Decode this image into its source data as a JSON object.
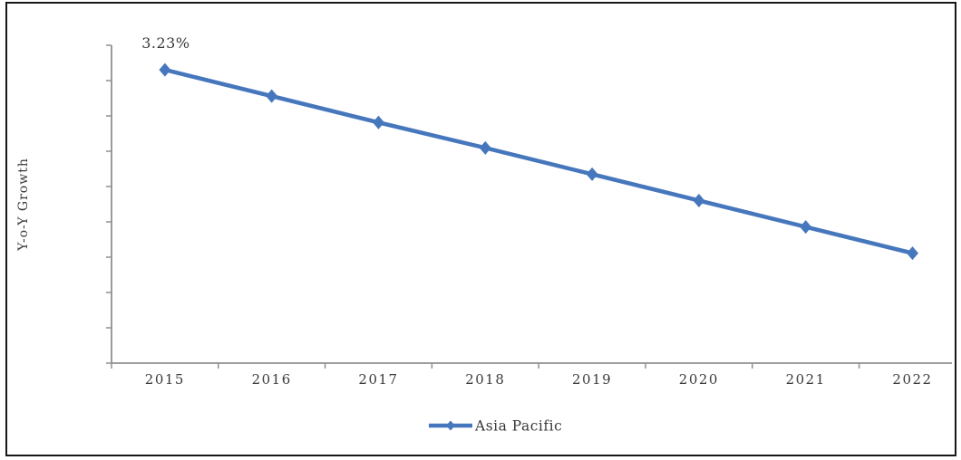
{
  "figure": {
    "background": "#ffffff",
    "border_color": "#161616"
  },
  "chart_data": {
    "type": "line",
    "title": "",
    "xlabel": "",
    "ylabel": "Y-o-Y Growth",
    "categories": [
      "2015",
      "2016",
      "2017",
      "2018",
      "2019",
      "2020",
      "2021",
      "2022"
    ],
    "series": [
      {
        "name": "Asia Pacific",
        "values": [
          3.23,
          2.94,
          2.65,
          2.37,
          2.08,
          1.79,
          1.5,
          1.21
        ],
        "color": "#4677BD",
        "marker": "diamond"
      }
    ],
    "data_labels": [
      {
        "category": "2015",
        "text": "3.23%"
      }
    ],
    "ylim": [
      0,
      3.5
    ],
    "y_tick_count": 10,
    "y_tick_labels_visible": false,
    "grid": false,
    "legend_position": "bottom",
    "axis_color": "#909090",
    "text_color": "#3a3a3a"
  }
}
